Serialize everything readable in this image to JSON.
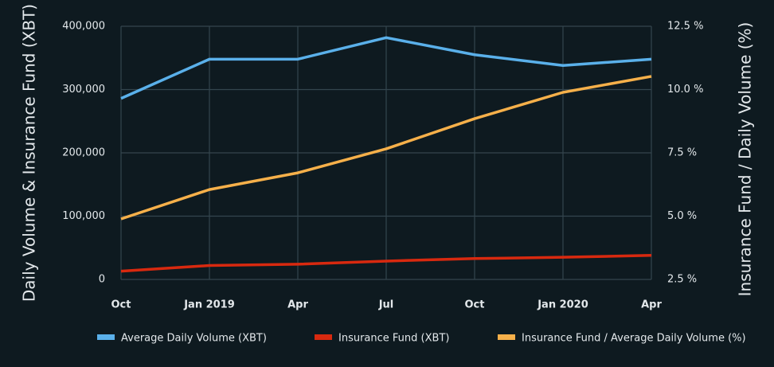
{
  "chart_data": {
    "type": "line",
    "categories": [
      "Oct",
      "Jan 2019",
      "Apr",
      "Jul",
      "Oct",
      "Jan 2020",
      "Apr"
    ],
    "y_label": "Daily Volume & Insurance Fund (XBT)",
    "y2_label": "Insurance Fund / Daily Volume (%)",
    "ylim": [
      0,
      400000
    ],
    "yticks": [
      0,
      {
        "value": 100000,
        "label": "100,000"
      },
      {
        "value": 200000,
        "label": "200,000"
      },
      {
        "value": 300000,
        "label": "300,000"
      },
      {
        "value": 400000,
        "label": "400,000"
      }
    ],
    "y2lim": [
      2.5,
      12.5
    ],
    "y2ticks": [
      {
        "value": 2.5,
        "label": "2.5 %"
      },
      {
        "value": 5.0,
        "label": "5.0 %"
      },
      {
        "value": 7.5,
        "label": "7.5 %"
      },
      {
        "value": 10.0,
        "label": "10.0 %"
      },
      {
        "value": 12.5,
        "label": "12.5 %"
      }
    ],
    "grid": true,
    "legend": "bottom",
    "series": [
      {
        "name": "Average Daily Volume (XBT)",
        "color": "#5ab0ea",
        "values": [
          286000,
          348000,
          348000,
          382000,
          355000,
          338000,
          348000
        ]
      },
      {
        "name": "Insurance Fund (XBT)",
        "color": "#d8290f",
        "values": [
          13000,
          22000,
          24000,
          29000,
          33000,
          35000,
          38000
        ]
      },
      {
        "name": "Insurance Fund / Average Daily Volume (%)",
        "color": "#f6b04a",
        "axis": "y2",
        "values": [
          4.89,
          6.05,
          6.71,
          7.66,
          8.85,
          9.89,
          10.52
        ]
      }
    ]
  }
}
